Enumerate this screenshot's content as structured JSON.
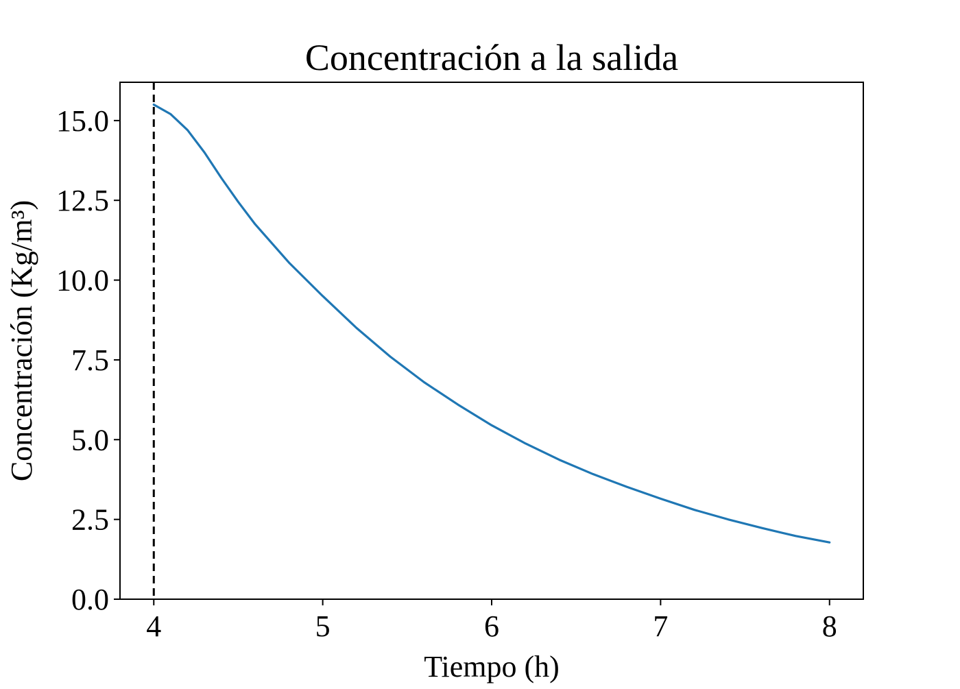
{
  "chart_data": {
    "type": "line",
    "title": "Concentración a la salida",
    "xlabel": "Tiempo (h)",
    "ylabel": "Concentración (Kg/m³)",
    "xlim": [
      3.8,
      8.2
    ],
    "ylim": [
      0.0,
      16.2
    ],
    "x_ticks": [
      4,
      5,
      6,
      7,
      8
    ],
    "x_tick_labels": [
      "4",
      "5",
      "6",
      "7",
      "8"
    ],
    "y_ticks": [
      0.0,
      2.5,
      5.0,
      7.5,
      10.0,
      12.5,
      15.0
    ],
    "y_tick_labels": [
      "0.0",
      "2.5",
      "5.0",
      "7.5",
      "10.0",
      "12.5",
      "15.0"
    ],
    "grid": false,
    "legend": "none",
    "series": [
      {
        "color": "#1f77b4",
        "x": [
          4.0,
          4.1,
          4.2,
          4.3,
          4.4,
          4.5,
          4.6,
          4.8,
          5.0,
          5.2,
          5.4,
          5.6,
          5.8,
          6.0,
          6.2,
          6.4,
          6.6,
          6.8,
          7.0,
          7.2,
          7.4,
          7.6,
          7.8,
          8.0
        ],
        "y": [
          15.5,
          15.2,
          14.7,
          14.0,
          13.2,
          12.45,
          11.75,
          10.55,
          9.5,
          8.5,
          7.6,
          6.8,
          6.1,
          5.45,
          4.88,
          4.37,
          3.92,
          3.52,
          3.15,
          2.8,
          2.5,
          2.23,
          1.98,
          1.78
        ]
      }
    ],
    "vlines": [
      {
        "x": 4.0,
        "style": "dashed",
        "color": "#000000"
      }
    ]
  }
}
